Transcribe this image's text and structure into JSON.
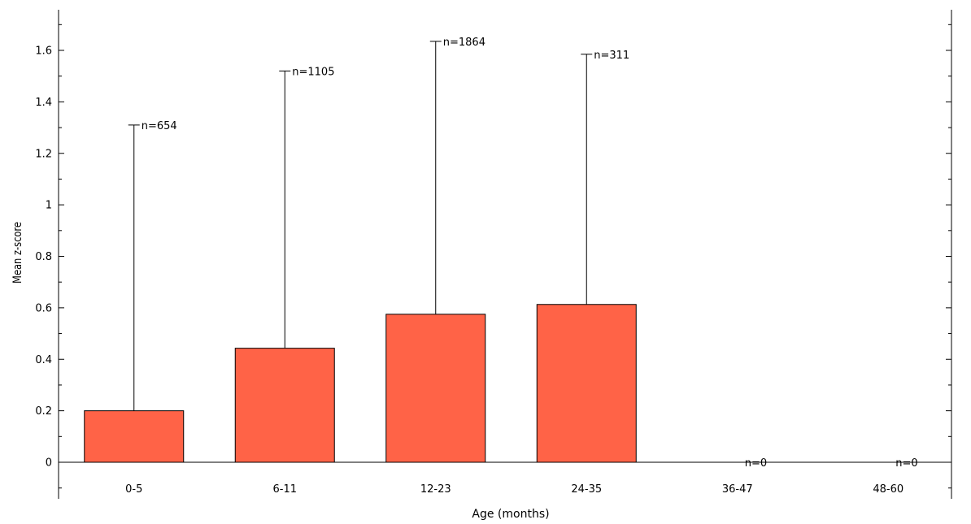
{
  "chart_data": {
    "type": "bar",
    "title": "",
    "xlabel": "Age (months)",
    "ylabel": "Mean z-score",
    "categories": [
      "0-5",
      "6-11",
      "12-23",
      "24-35",
      "36-47",
      "48-60"
    ],
    "values": [
      0.2,
      0.443,
      0.575,
      0.613,
      null,
      null
    ],
    "error_upper": [
      1.31,
      1.52,
      1.635,
      1.585,
      null,
      null
    ],
    "n_labels": [
      "n=654",
      "n=1105",
      "n=1864",
      "n=311",
      "n=0",
      "n=0"
    ],
    "ylim": [
      -0.12,
      1.75
    ],
    "yticks": [
      0,
      0.2,
      0.4,
      0.6,
      0.8,
      1,
      1.2,
      1.4,
      1.6
    ],
    "ytick_labels": [
      "0",
      "0.2",
      "0.4",
      "0.6",
      "0.8",
      "1",
      "1.2",
      "1.4",
      "1.6"
    ],
    "grid": false,
    "legend": "none",
    "bar_color": "#FF6347",
    "bar_edge_color": "#000000",
    "axis_color": "#000000"
  }
}
